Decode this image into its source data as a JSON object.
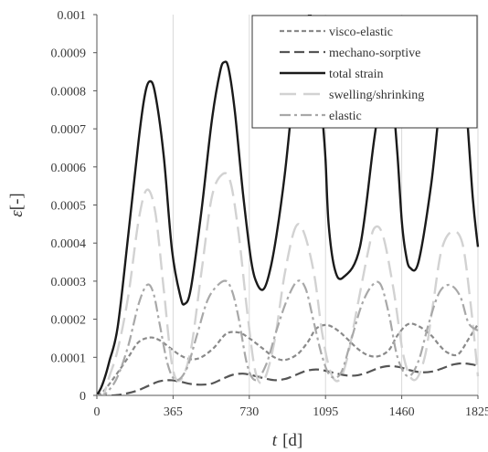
{
  "chart_data": {
    "type": "line",
    "xlabel_italic": "t",
    "xlabel_unit": "[d]",
    "ylabel_italic": "ε",
    "ylabel_unit": "[-]",
    "xlim": [
      0,
      1825
    ],
    "ylim": [
      0,
      0.001
    ],
    "x_ticks": [
      0,
      365,
      730,
      1095,
      1460,
      1825
    ],
    "x_tick_labels": [
      "0",
      "365",
      "730",
      "1095",
      "1460",
      "1825"
    ],
    "y_ticks": [
      0,
      0.0001,
      0.0002,
      0.0003,
      0.0004,
      0.0005,
      0.0006,
      0.0007,
      0.0008,
      0.0009,
      0.001
    ],
    "y_tick_labels": [
      "0",
      "0.0001",
      "0.0002",
      "0.0003",
      "0.0004",
      "0.0005",
      "0.0006",
      "0.0007",
      "0.0008",
      "0.0009",
      "0.001"
    ],
    "grid": "vertical",
    "legend_position": "top-right",
    "series": [
      {
        "name": "visco-elastic",
        "color": "#8a8a8a",
        "style": "short-dash",
        "x": [
          0,
          30,
          60,
          100,
          150,
          200,
          255,
          300,
          350,
          400,
          450,
          500,
          560,
          620,
          680,
          730,
          790,
          850,
          900,
          960,
          1010,
          1050,
          1100,
          1150,
          1200,
          1250,
          1300,
          1350,
          1400,
          1440,
          1490,
          1540,
          1600,
          1640,
          1680,
          1730,
          1780,
          1825
        ],
        "y": [
          0,
          1e-05,
          3e-05,
          6e-05,
          0.0001,
          0.00014,
          0.000152,
          0.000145,
          0.000125,
          0.000105,
          9.5e-05,
          0.0001,
          0.000125,
          0.000162,
          0.000165,
          0.00015,
          0.000125,
          0.0001,
          9.3e-05,
          0.000108,
          0.00014,
          0.000175,
          0.000185,
          0.000172,
          0.000148,
          0.000122,
          0.000105,
          0.000103,
          0.00012,
          0.000158,
          0.000187,
          0.000182,
          0.000158,
          0.000132,
          0.000112,
          0.000108,
          0.000148,
          0.000187
        ]
      },
      {
        "name": "mechano-sorptive",
        "color": "#555555",
        "style": "long-dash",
        "x": [
          0,
          80,
          150,
          200,
          250,
          300,
          350,
          400,
          450,
          500,
          550,
          600,
          650,
          700,
          750,
          800,
          850,
          900,
          950,
          1000,
          1050,
          1100,
          1150,
          1200,
          1250,
          1300,
          1350,
          1400,
          1450,
          1500,
          1550,
          1600,
          1650,
          1700,
          1750,
          1800,
          1825
        ],
        "y": [
          0,
          0,
          6e-06,
          1.4e-05,
          2.6e-05,
          3.7e-05,
          4e-05,
          3.6e-05,
          3e-05,
          2.8e-05,
          3.1e-05,
          4.3e-05,
          5.4e-05,
          5.7e-05,
          5.2e-05,
          4.5e-05,
          4e-05,
          4.3e-05,
          5.3e-05,
          6.4e-05,
          6.8e-05,
          6.4e-05,
          5.7e-05,
          5.2e-05,
          5.3e-05,
          6.1e-05,
          7.2e-05,
          7.7e-05,
          7.4e-05,
          6.6e-05,
          6.1e-05,
          6.2e-05,
          7e-05,
          8e-05,
          8.4e-05,
          8.1e-05,
          7.7e-05
        ]
      },
      {
        "name": "total strain",
        "color": "#1a1a1a",
        "style": "solid",
        "x": [
          0,
          20,
          40,
          60,
          100,
          150,
          200,
          230,
          255,
          280,
          320,
          360,
          400,
          420,
          450,
          500,
          550,
          590,
          610,
          630,
          660,
          700,
          740,
          770,
          800,
          830,
          860,
          900,
          960,
          1020,
          1055,
          1080,
          1095,
          1110,
          1140,
          1180,
          1260,
          1330,
          1400,
          1420,
          1440,
          1460,
          1480,
          1500,
          1540,
          1600,
          1640,
          1680,
          1720,
          1760,
          1800,
          1825
        ],
        "y": [
          0,
          2e-05,
          5e-05,
          9e-05,
          0.00018,
          0.00042,
          0.00067,
          0.00079,
          0.000825,
          0.00079,
          0.00063,
          0.00038,
          0.00026,
          0.00024,
          0.00028,
          0.00048,
          0.00072,
          0.00085,
          0.000875,
          0.00086,
          0.00075,
          0.00053,
          0.00035,
          0.00029,
          0.00028,
          0.00033,
          0.00042,
          0.00058,
          0.00088,
          0.001,
          0.00088,
          0.00073,
          0.00062,
          0.00045,
          0.00033,
          0.00031,
          0.00039,
          0.00068,
          0.00092,
          0.00077,
          0.00063,
          0.00046,
          0.00037,
          0.000335,
          0.00035,
          0.00055,
          0.00075,
          0.0009,
          0.00095,
          0.00082,
          0.00052,
          0.00039
        ]
      },
      {
        "name": "swelling/shrinking",
        "color": "#d2d2d2",
        "style": "long-dash",
        "x": [
          0,
          30,
          60,
          100,
          150,
          200,
          240,
          280,
          320,
          360,
          400,
          450,
          500,
          550,
          600,
          640,
          680,
          720,
          760,
          800,
          850,
          900,
          950,
          990,
          1040,
          1080,
          1120,
          1160,
          1200,
          1250,
          1300,
          1330,
          1370,
          1420,
          1470,
          1520,
          1570,
          1610,
          1650,
          1700,
          1750,
          1790,
          1825
        ],
        "y": [
          0,
          0,
          5e-05,
          0.00012,
          0.00026,
          0.00046,
          0.00054,
          0.00048,
          0.00028,
          8e-05,
          4e-05,
          0.00012,
          0.00032,
          0.00052,
          0.00058,
          0.00056,
          0.00042,
          0.00022,
          6e-05,
          4e-05,
          0.00014,
          0.00032,
          0.00044,
          0.00043,
          0.00032,
          0.00016,
          6e-05,
          4e-05,
          0.0001,
          0.00024,
          0.00038,
          0.00044,
          0.00042,
          0.00028,
          0.0001,
          4e-05,
          0.0001,
          0.00024,
          0.00038,
          0.00043,
          0.0004,
          0.00024,
          5e-05
        ]
      },
      {
        "name": "elastic",
        "color": "#a8a8a8",
        "style": "dash-dot",
        "x": [
          0,
          30,
          60,
          100,
          150,
          200,
          240,
          270,
          300,
          340,
          380,
          430,
          480,
          530,
          580,
          620,
          650,
          680,
          720,
          760,
          810,
          860,
          910,
          960,
          1000,
          1040,
          1080,
          1120,
          1170,
          1220,
          1270,
          1320,
          1360,
          1400,
          1440,
          1490,
          1540,
          1590,
          1640,
          1690,
          1740,
          1780,
          1825
        ],
        "y": [
          0,
          0,
          1.5e-05,
          5e-05,
          0.00013,
          0.00024,
          0.00029,
          0.00027,
          0.00019,
          8e-05,
          4e-05,
          7e-05,
          0.00016,
          0.00025,
          0.00029,
          0.0003,
          0.00027,
          0.0002,
          8e-05,
          4e-05,
          8e-05,
          0.00017,
          0.00025,
          0.0003,
          0.00028,
          0.00019,
          0.0001,
          5e-05,
          6e-05,
          0.00015,
          0.00024,
          0.00029,
          0.00029,
          0.00021,
          0.0001,
          5e-05,
          9e-05,
          0.00019,
          0.00027,
          0.00029,
          0.00026,
          0.00019,
          0.00017
        ]
      }
    ]
  }
}
